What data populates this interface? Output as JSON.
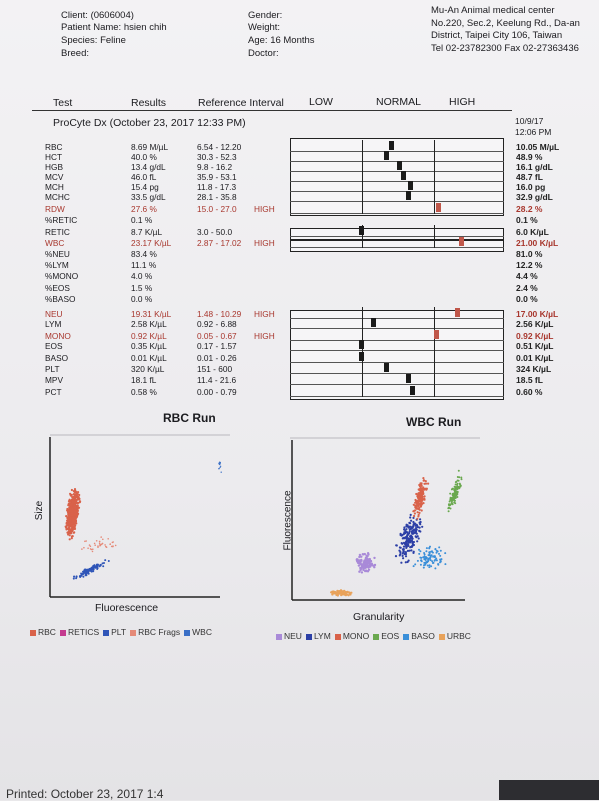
{
  "patient": {
    "client_label": "Client:",
    "client": "(0606004)",
    "name_label": "Patient Name:",
    "name": "hsien chih",
    "species_label": "Species:",
    "species": "Feline",
    "breed_label": "Breed:",
    "breed": ""
  },
  "patient2": {
    "gender_label": "Gender:",
    "weight_label": "Weight:",
    "age_label": "Age:",
    "age": "16 Months",
    "doctor_label": "Doctor:"
  },
  "clinic": {
    "name": "Mu-An Animal medical center",
    "address": "No.220, Sec.2, Keelung Rd., Da-an District, Taipei City 106, Taiwan",
    "tel": "Tel 02-23782300  Fax 02-27363436"
  },
  "columns": {
    "test": "Test",
    "results": "Results",
    "ref": "Reference Interval",
    "low": "LOW",
    "normal": "NORMAL",
    "high": "HIGH"
  },
  "run": {
    "title": "ProCyte Dx (October 23, 2017 12:33 PM)",
    "prev_date": "10/9/17",
    "prev_time": "12:06 PM"
  },
  "rows": [
    {
      "test": "RBC",
      "result": "8.69 M/µL",
      "ref": "6.54 - 12.20",
      "flag": "",
      "prev": "10.05 M/µL",
      "level": 0.47,
      "color": "#1a1a1a"
    },
    {
      "test": "HCT",
      "result": "40.0 %",
      "ref": "30.3 - 52.3",
      "flag": "",
      "prev": "48.9 %",
      "level": 0.45,
      "color": "#1a1a1a"
    },
    {
      "test": "HGB",
      "result": "13.4 g/dL",
      "ref": "9.8 - 16.2",
      "flag": "",
      "prev": "16.1 g/dL",
      "level": 0.51,
      "color": "#1a1a1a"
    },
    {
      "test": "MCV",
      "result": "46.0 fL",
      "ref": "35.9 - 53.1",
      "flag": "",
      "prev": "48.7 fL",
      "level": 0.53,
      "color": "#1a1a1a"
    },
    {
      "test": "MCH",
      "result": "15.4 pg",
      "ref": "11.8 - 17.3",
      "flag": "",
      "prev": "16.0 pg",
      "level": 0.56,
      "color": "#1a1a1a"
    },
    {
      "test": "MCHC",
      "result": "33.5 g/dL",
      "ref": "28.1 - 35.8",
      "flag": "",
      "prev": "32.9 g/dL",
      "level": 0.55,
      "color": "#1a1a1a"
    },
    {
      "test": "RDW",
      "result": "27.6 %",
      "ref": "15.0 - 27.0",
      "flag": "HIGH",
      "prev": "28.2 %",
      "level": 0.69,
      "color": "#c0574a",
      "red": true
    },
    {
      "test": "%RETIC",
      "result": "0.1 %",
      "ref": "",
      "flag": "",
      "prev": "0.1 %"
    },
    {
      "test": "RETIC",
      "result": "8.7 K/µL",
      "ref": "3.0 - 50.0",
      "flag": "",
      "prev": "6.0 K/µL",
      "level": 0.33,
      "color": "#1a1a1a"
    },
    {
      "test": "WBC",
      "result": "23.17 K/µL",
      "ref": "2.87 - 17.02",
      "flag": "HIGH",
      "prev": "21.00 K/µL",
      "level": 0.8,
      "color": "#c0574a",
      "red": true
    },
    {
      "test": "%NEU",
      "result": "83.4 %",
      "ref": "",
      "flag": "",
      "prev": "81.0 %"
    },
    {
      "test": "%LYM",
      "result": "11.1 %",
      "ref": "",
      "flag": "",
      "prev": "12.2 %"
    },
    {
      "test": "%MONO",
      "result": "4.0 %",
      "ref": "",
      "flag": "",
      "prev": "4.4 %"
    },
    {
      "test": "%EOS",
      "result": "1.5 %",
      "ref": "",
      "flag": "",
      "prev": "2.4 %"
    },
    {
      "test": "%BASO",
      "result": "0.0 %",
      "ref": "",
      "flag": "",
      "prev": "0.0 %"
    },
    {
      "test": "NEU",
      "result": "19.31 K/µL",
      "ref": "1.48 - 10.29",
      "flag": "HIGH",
      "prev": "17.00 K/µL",
      "level": 0.78,
      "color": "#c0574a",
      "red": true
    },
    {
      "test": "LYM",
      "result": "2.58 K/µL",
      "ref": "0.92 - 6.88",
      "flag": "",
      "prev": "2.56 K/µL",
      "level": 0.39,
      "color": "#1a1a1a"
    },
    {
      "test": "MONO",
      "result": "0.92 K/µL",
      "ref": "0.05 - 0.67",
      "flag": "HIGH",
      "prev": "0.92 K/µL",
      "level": 0.68,
      "color": "#c0574a",
      "red": true
    },
    {
      "test": "EOS",
      "result": "0.35 K/µL",
      "ref": "0.17 - 1.57",
      "flag": "",
      "prev": "0.51 K/µL",
      "level": 0.33,
      "color": "#1a1a1a"
    },
    {
      "test": "BASO",
      "result": "0.01 K/µL",
      "ref": "0.01 - 0.26",
      "flag": "",
      "prev": "0.01 K/µL",
      "level": 0.33,
      "color": "#1a1a1a"
    },
    {
      "test": "PLT",
      "result": "320 K/µL",
      "ref": "151 - 600",
      "flag": "",
      "prev": "324 K/µL",
      "level": 0.45,
      "color": "#1a1a1a"
    },
    {
      "test": "MPV",
      "result": "18.1 fL",
      "ref": "11.4 - 21.6",
      "flag": "",
      "prev": "18.5 fL",
      "level": 0.55,
      "color": "#1a1a1a"
    },
    {
      "test": "PCT",
      "result": "0.58 %",
      "ref": "0.00 - 0.79",
      "flag": "",
      "prev": "0.60 %",
      "level": 0.57,
      "color": "#1a1a1a"
    }
  ],
  "rbc_plot": {
    "title": "RBC Run",
    "xlabel": "Fluorescence",
    "ylabel": "Size",
    "legend": [
      {
        "label": "RBC",
        "color": "#d9624a"
      },
      {
        "label": "RETICS",
        "color": "#c43b8f"
      },
      {
        "label": "PLT",
        "color": "#2f55b8"
      },
      {
        "label": "RBC Frags",
        "color": "#e58a78"
      },
      {
        "label": "WBC",
        "color": "#3a6fc6"
      }
    ]
  },
  "wbc_plot": {
    "title": "WBC Run",
    "xlabel": "Granularity",
    "ylabel": "Fluorescence",
    "legend": [
      {
        "label": "NEU",
        "color": "#a98ad8"
      },
      {
        "label": "LYM",
        "color": "#2c3fa6"
      },
      {
        "label": "MONO",
        "color": "#d9624a"
      },
      {
        "label": "EOS",
        "color": "#6aa84f"
      },
      {
        "label": "BASO",
        "color": "#3a8fd9"
      },
      {
        "label": "URBC",
        "color": "#e8a25a"
      }
    ]
  },
  "footer": {
    "printed": "Printed: October 23, 2017 1:4"
  }
}
